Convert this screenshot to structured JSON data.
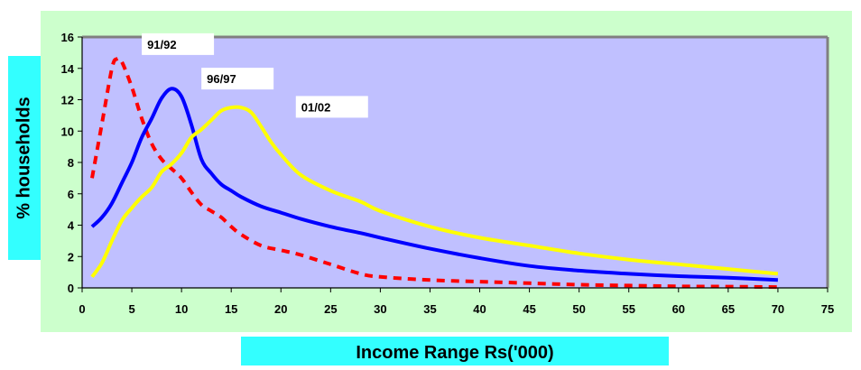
{
  "chart_data": {
    "type": "line",
    "title": "",
    "xlabel": "Income Range Rs('000)",
    "ylabel": "% households",
    "xlim": [
      0,
      75
    ],
    "ylim": [
      0,
      16
    ],
    "xticks": [
      0,
      5,
      10,
      15,
      20,
      25,
      30,
      35,
      40,
      45,
      50,
      55,
      60,
      65,
      70,
      75
    ],
    "yticks": [
      0,
      2,
      4,
      6,
      8,
      10,
      12,
      14,
      16
    ],
    "grid": false,
    "colors": {
      "outer_background": "#ccffcc",
      "plot_background": "#c0c0ff",
      "plot_border": "#808080",
      "label_boxes": "#33ffff"
    },
    "series": [
      {
        "name": "91/92",
        "color": "#ff0000",
        "dash": "dashed",
        "x": [
          1,
          2,
          3,
          3.5,
          4,
          5,
          6,
          7,
          8,
          9,
          10,
          11,
          12,
          13,
          14,
          15,
          16,
          18,
          20,
          22,
          25,
          28,
          30,
          35,
          40,
          45,
          50,
          55,
          60,
          65,
          70
        ],
        "y": [
          7.0,
          10.5,
          14.0,
          14.6,
          14.4,
          12.8,
          10.8,
          9.2,
          8.2,
          7.6,
          7.0,
          6.1,
          5.3,
          4.9,
          4.5,
          3.9,
          3.4,
          2.7,
          2.4,
          2.1,
          1.5,
          0.9,
          0.7,
          0.5,
          0.4,
          0.3,
          0.2,
          0.15,
          0.1,
          0.08,
          0.05
        ]
      },
      {
        "name": "96/97",
        "color": "#0000ff",
        "dash": "solid",
        "x": [
          1,
          2,
          3,
          4,
          5,
          6,
          7,
          8,
          9,
          10,
          11,
          12,
          13,
          14,
          15,
          16,
          18,
          20,
          22,
          25,
          28,
          30,
          35,
          40,
          45,
          50,
          55,
          60,
          65,
          70
        ],
        "y": [
          3.9,
          4.5,
          5.4,
          6.7,
          8.0,
          9.6,
          10.8,
          12.1,
          12.7,
          12.2,
          10.4,
          8.2,
          7.3,
          6.6,
          6.2,
          5.8,
          5.2,
          4.8,
          4.4,
          3.9,
          3.5,
          3.2,
          2.5,
          1.9,
          1.4,
          1.1,
          0.9,
          0.75,
          0.65,
          0.5
        ]
      },
      {
        "name": "01/02",
        "color": "#ffff00",
        "dash": "solid",
        "x": [
          1,
          2,
          3,
          4,
          5,
          6,
          7,
          8,
          9,
          10,
          11,
          12,
          13,
          14,
          15,
          16,
          17,
          18,
          19,
          20,
          22,
          25,
          28,
          30,
          35,
          40,
          45,
          50,
          55,
          60,
          65,
          70
        ],
        "y": [
          0.7,
          1.6,
          3.0,
          4.3,
          5.1,
          5.8,
          6.4,
          7.4,
          7.9,
          8.6,
          9.6,
          10.1,
          10.7,
          11.3,
          11.5,
          11.5,
          11.2,
          10.3,
          9.3,
          8.5,
          7.2,
          6.2,
          5.5,
          4.9,
          3.9,
          3.2,
          2.7,
          2.2,
          1.8,
          1.5,
          1.2,
          0.9
        ]
      }
    ],
    "annotations": [
      {
        "text": "91/92",
        "x": 6,
        "y": 15.2
      },
      {
        "text": "96/97",
        "x": 12,
        "y": 13.0
      },
      {
        "text": "01/02",
        "x": 21.5,
        "y": 11.2
      }
    ]
  }
}
